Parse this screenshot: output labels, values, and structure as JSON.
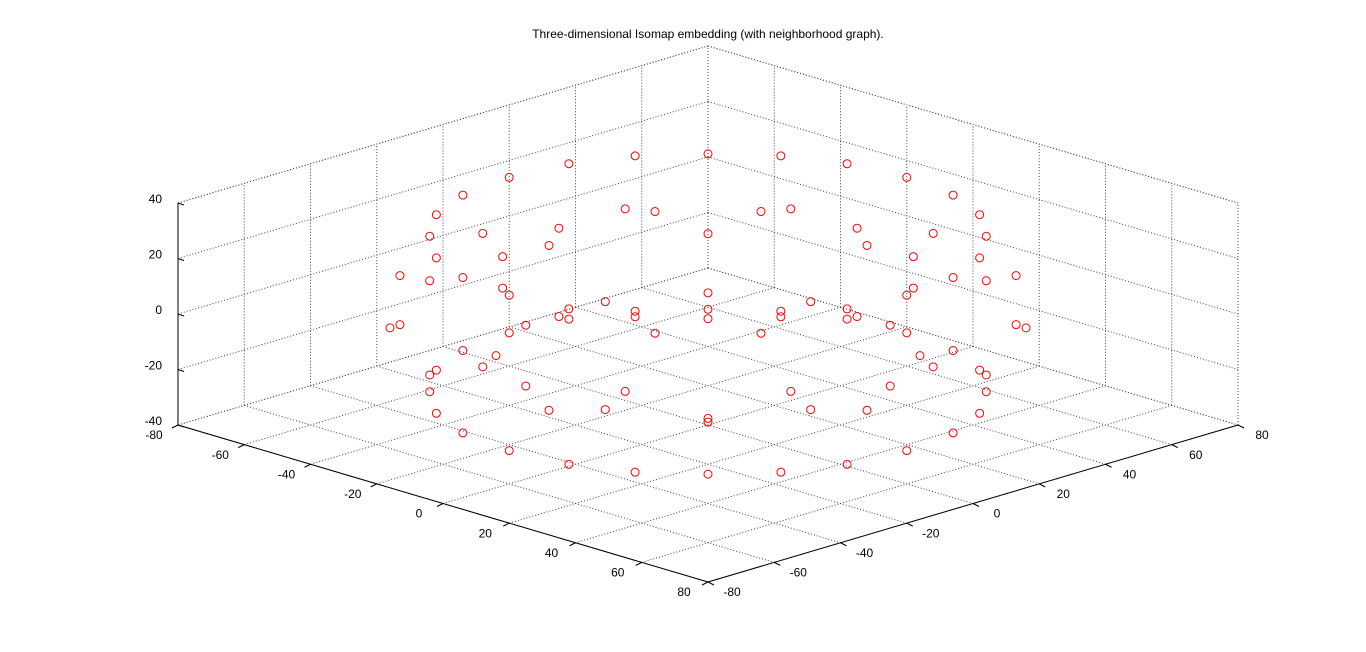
{
  "chart_data": {
    "type": "scatter3d",
    "title": "Three-dimensional Isomap embedding (with neighborhood graph).",
    "color": "#ff0000",
    "xlim": [
      -80,
      80
    ],
    "ylim": [
      -80,
      80
    ],
    "zlim": [
      -40,
      40
    ],
    "xticks": [
      -80,
      -60,
      -40,
      -20,
      0,
      20,
      40,
      60,
      80
    ],
    "yticks": [
      -80,
      -60,
      -40,
      -20,
      0,
      20,
      40,
      60,
      80
    ],
    "zticks": [
      -40,
      -20,
      0,
      20,
      40
    ],
    "grid": true,
    "x": [
      68,
      66,
      59,
      48,
      34,
      18,
      0,
      -18,
      -34,
      -48,
      -59,
      -66,
      -68,
      -66,
      -59,
      -48,
      -34,
      -18,
      0,
      18,
      34,
      48,
      59,
      66,
      60,
      58,
      52,
      42,
      30,
      16,
      0,
      -16,
      -30,
      -42,
      -52,
      -58,
      -60,
      -58,
      -52,
      -42,
      -30,
      -16,
      0,
      16,
      30,
      42,
      52,
      58,
      60,
      58,
      52,
      42,
      30,
      16,
      0,
      -16,
      -30,
      -42,
      -52,
      -58,
      -60,
      -58,
      -52,
      -42,
      -30,
      -16,
      0,
      16,
      30,
      42,
      52,
      58,
      45,
      43,
      39,
      32,
      23,
      12,
      0,
      -12,
      -23,
      -32,
      -39,
      -43,
      -45,
      -43,
      -39,
      -32,
      -23,
      -12,
      0,
      12,
      23,
      32,
      39,
      43
    ],
    "y": [
      0,
      18,
      34,
      48,
      59,
      66,
      68,
      66,
      59,
      48,
      34,
      18,
      0,
      -18,
      -34,
      -48,
      -59,
      -66,
      -68,
      -66,
      -59,
      -48,
      -34,
      -18,
      0,
      16,
      30,
      42,
      52,
      58,
      60,
      58,
      52,
      42,
      30,
      16,
      0,
      -16,
      -30,
      -42,
      -52,
      -58,
      -60,
      -58,
      -52,
      -42,
      -30,
      -16,
      0,
      16,
      30,
      42,
      52,
      58,
      60,
      58,
      52,
      42,
      30,
      16,
      0,
      -16,
      -30,
      -42,
      -52,
      -58,
      -60,
      -58,
      -52,
      -42,
      -30,
      -16,
      0,
      12,
      23,
      32,
      39,
      43,
      45,
      43,
      39,
      32,
      23,
      12,
      0,
      -12,
      -23,
      -32,
      -39,
      -43,
      -45,
      -43,
      -39,
      -32,
      -23,
      -12
    ],
    "z": [
      5,
      -5,
      5,
      -5,
      5,
      -5,
      5,
      -5,
      5,
      -5,
      5,
      -5,
      5,
      -5,
      5,
      -5,
      5,
      -5,
      5,
      -5,
      5,
      -5,
      5,
      -5,
      28,
      28,
      28,
      28,
      28,
      28,
      28,
      28,
      28,
      28,
      28,
      28,
      28,
      28,
      28,
      28,
      28,
      28,
      28,
      28,
      28,
      28,
      28,
      28,
      -28,
      -28,
      -28,
      -28,
      -28,
      -28,
      -28,
      -28,
      -28,
      -28,
      -28,
      -28,
      -28,
      -28,
      -28,
      -28,
      -28,
      -28,
      -28,
      -28,
      -28,
      -28,
      -28,
      -28,
      15,
      -15,
      15,
      -15,
      15,
      -15,
      15,
      -15,
      15,
      -15,
      15,
      -15,
      15,
      -15,
      15,
      -15,
      15,
      -15,
      15,
      -15,
      15,
      -15,
      15,
      -15
    ]
  }
}
